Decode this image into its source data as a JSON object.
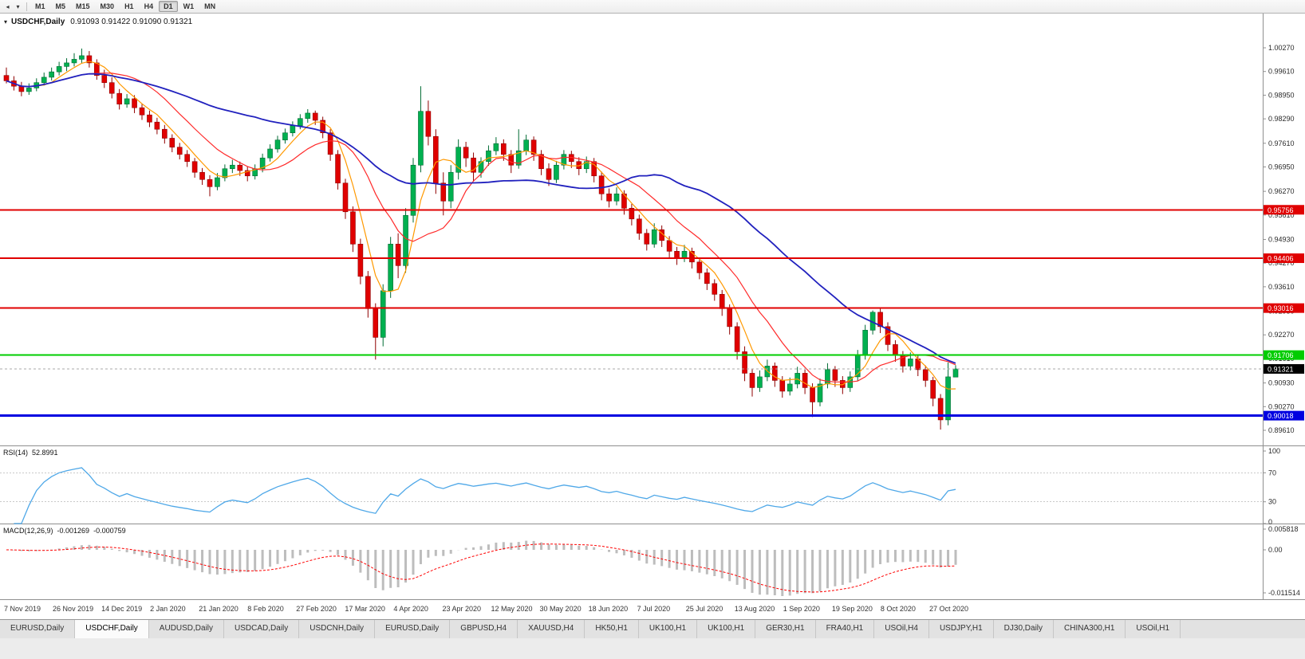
{
  "toolbar": {
    "timeframes": [
      "M1",
      "M5",
      "M15",
      "M30",
      "H1",
      "H4",
      "D1",
      "W1",
      "MN"
    ],
    "active_timeframe": "D1",
    "overflow_icon": "◂",
    "dropdown_icon": "▾"
  },
  "chart": {
    "symbol_title": "USDCHF,Daily",
    "ohlc_text": "0.91093 0.91422 0.91090 0.91321",
    "expander_icon": "▾"
  },
  "tabs": {
    "active_index": 1,
    "items": [
      "EURUSD,Daily",
      "USDCHF,Daily",
      "AUDUSD,Daily",
      "USDCAD,Daily",
      "USDCNH,Daily",
      "EURUSD,Daily",
      "GBPUSD,H4",
      "XAUUSD,H4",
      "HK50,H1",
      "UK100,H1",
      "UK100,H1",
      "GER30,H1",
      "FRA40,H1",
      "USOil,H4",
      "USDJPY,H1",
      "DJ30,Daily",
      "CHINA300,H1",
      "USOil,H1"
    ]
  },
  "chart_data": {
    "type": "candlestick",
    "symbol": "USDCHF",
    "period": "Daily",
    "last_bar": {
      "open": 0.91093,
      "high": 0.91422,
      "low": 0.9109,
      "close": 0.91321
    },
    "y_axis_labels": [
      "1.00270",
      "0.99610",
      "0.98950",
      "0.98290",
      "0.97610",
      "0.96950",
      "0.96270",
      "0.95610",
      "0.94930",
      "0.94270",
      "0.93610",
      "0.92930",
      "0.92270",
      "0.91610",
      "0.90930",
      "0.90270",
      "0.89610"
    ],
    "x_labels": [
      "7 Nov 2019",
      "26 Nov 2019",
      "14 Dec 2019",
      "2 Jan 2020",
      "21 Jan 2020",
      "8 Feb 2020",
      "27 Feb 2020",
      "17 Mar 2020",
      "4 Apr 2020",
      "23 Apr 2020",
      "12 May 2020",
      "30 May 2020",
      "18 Jun 2020",
      "7 Jul 2020",
      "25 Jul 2020",
      "13 Aug 2020",
      "1 Sep 2020",
      "19 Sep 2020",
      "8 Oct 2020",
      "27 Oct 2020"
    ],
    "hlines": [
      {
        "price": 0.95756,
        "label": "0.95756",
        "color": "#E00000",
        "width": 2
      },
      {
        "price": 0.94406,
        "label": "0.94406",
        "color": "#E00000",
        "width": 2
      },
      {
        "price": 0.93016,
        "label": "0.93016",
        "color": "#E00000",
        "width": 2
      },
      {
        "price": 0.91706,
        "label": "0.91706",
        "color": "#00CC00",
        "width": 2
      },
      {
        "price": 0.90018,
        "label": "0.90018",
        "color": "#0000E0",
        "width": 3
      }
    ],
    "current_price": {
      "value": 0.91321,
      "label": "0.91321",
      "line_color": "#A8A8A8",
      "label_bg": "#000000"
    },
    "colors": {
      "up": "#00B050",
      "up_dark": "#006B33",
      "down": "#E00000",
      "down_dark": "#8F0000",
      "ma_fast": "#FF9900",
      "ma_mid": "#FF2A2A",
      "ma_slow": "#2121BE"
    },
    "rsi": {
      "label": "RSI(14)",
      "value": "52.8991",
      "levels": [
        100,
        70,
        30,
        0
      ],
      "color": "#4FA8E8"
    },
    "macd": {
      "label": "MACD(12,26,9)",
      "value_main": "-0.001269",
      "value_signal": "-0.000759",
      "axis_labels": [
        "0.005818",
        "0.00",
        "-0.011514"
      ],
      "hist_color": "#BDBDBD",
      "signal_color": "#FF0000"
    },
    "candles": [
      [
        0.995,
        0.9972,
        0.9928,
        0.9935
      ],
      [
        0.9935,
        0.9948,
        0.9908,
        0.992
      ],
      [
        0.992,
        0.9932,
        0.9892,
        0.9905
      ],
      [
        0.9905,
        0.9928,
        0.9896,
        0.9915
      ],
      [
        0.9915,
        0.9942,
        0.9906,
        0.993
      ],
      [
        0.993,
        0.9958,
        0.9922,
        0.9945
      ],
      [
        0.9945,
        0.9972,
        0.9936,
        0.996
      ],
      [
        0.996,
        0.9988,
        0.995,
        0.9975
      ],
      [
        0.9975,
        0.9998,
        0.9962,
        0.9985
      ],
      [
        0.9985,
        1.0012,
        0.9975,
        0.9995
      ],
      [
        0.9995,
        1.0025,
        0.9985,
        1.0005
      ],
      [
        1.0005,
        1.0018,
        0.9972,
        0.9985
      ],
      [
        0.9985,
        0.9995,
        0.9938,
        0.995
      ],
      [
        0.995,
        0.9966,
        0.9915,
        0.993
      ],
      [
        0.993,
        0.9945,
        0.9886,
        0.99
      ],
      [
        0.99,
        0.9912,
        0.9855,
        0.987
      ],
      [
        0.987,
        0.9898,
        0.986,
        0.9885
      ],
      [
        0.9885,
        0.9895,
        0.9845,
        0.986
      ],
      [
        0.986,
        0.9872,
        0.9826,
        0.984
      ],
      [
        0.984,
        0.9852,
        0.9806,
        0.982
      ],
      [
        0.982,
        0.9832,
        0.9786,
        0.98
      ],
      [
        0.98,
        0.9812,
        0.976,
        0.9775
      ],
      [
        0.9775,
        0.9786,
        0.9736,
        0.975
      ],
      [
        0.975,
        0.9762,
        0.9716,
        0.973
      ],
      [
        0.973,
        0.9742,
        0.9695,
        0.971
      ],
      [
        0.971,
        0.972,
        0.9665,
        0.968
      ],
      [
        0.968,
        0.9692,
        0.9645,
        0.966
      ],
      [
        0.966,
        0.9672,
        0.9613,
        0.964
      ],
      [
        0.964,
        0.9678,
        0.963,
        0.9665
      ],
      [
        0.9665,
        0.9702,
        0.9655,
        0.969
      ],
      [
        0.969,
        0.9715,
        0.9678,
        0.97
      ],
      [
        0.97,
        0.971,
        0.967,
        0.9685
      ],
      [
        0.9685,
        0.9696,
        0.9655,
        0.967
      ],
      [
        0.967,
        0.9702,
        0.966,
        0.969
      ],
      [
        0.969,
        0.9732,
        0.968,
        0.972
      ],
      [
        0.972,
        0.9758,
        0.971,
        0.9745
      ],
      [
        0.9745,
        0.9782,
        0.9735,
        0.977
      ],
      [
        0.977,
        0.9802,
        0.976,
        0.979
      ],
      [
        0.979,
        0.9822,
        0.978,
        0.981
      ],
      [
        0.981,
        0.9842,
        0.98,
        0.983
      ],
      [
        0.983,
        0.9856,
        0.9818,
        0.9845
      ],
      [
        0.9845,
        0.9852,
        0.9812,
        0.9825
      ],
      [
        0.9825,
        0.9835,
        0.9775,
        0.979
      ],
      [
        0.979,
        0.98,
        0.9712,
        0.973
      ],
      [
        0.973,
        0.9742,
        0.9632,
        0.965
      ],
      [
        0.965,
        0.9662,
        0.955,
        0.957
      ],
      [
        0.957,
        0.9585,
        0.9458,
        0.948
      ],
      [
        0.948,
        0.9495,
        0.9368,
        0.939
      ],
      [
        0.939,
        0.9405,
        0.9275,
        0.93
      ],
      [
        0.93,
        0.9315,
        0.9158,
        0.922
      ],
      [
        0.922,
        0.9368,
        0.9195,
        0.935
      ],
      [
        0.935,
        0.95,
        0.933,
        0.948
      ],
      [
        0.948,
        0.951,
        0.9385,
        0.942
      ],
      [
        0.942,
        0.958,
        0.94,
        0.956
      ],
      [
        0.956,
        0.972,
        0.954,
        0.97
      ],
      [
        0.97,
        0.992,
        0.968,
        0.985
      ],
      [
        0.985,
        0.988,
        0.9755,
        0.978
      ],
      [
        0.978,
        0.98,
        0.962,
        0.965
      ],
      [
        0.965,
        0.968,
        0.956,
        0.96
      ],
      [
        0.96,
        0.97,
        0.958,
        0.968
      ],
      [
        0.968,
        0.9772,
        0.966,
        0.975
      ],
      [
        0.975,
        0.9765,
        0.9695,
        0.972
      ],
      [
        0.972,
        0.9735,
        0.9655,
        0.968
      ],
      [
        0.968,
        0.9722,
        0.9665,
        0.971
      ],
      [
        0.971,
        0.9755,
        0.9698,
        0.974
      ],
      [
        0.974,
        0.9778,
        0.9728,
        0.976
      ],
      [
        0.976,
        0.9772,
        0.9712,
        0.973
      ],
      [
        0.973,
        0.9742,
        0.9678,
        0.97
      ],
      [
        0.97,
        0.98,
        0.969,
        0.974
      ],
      [
        0.974,
        0.9785,
        0.9728,
        0.977
      ],
      [
        0.977,
        0.978,
        0.9712,
        0.973
      ],
      [
        0.973,
        0.9742,
        0.9672,
        0.969
      ],
      [
        0.969,
        0.9705,
        0.9642,
        0.966
      ],
      [
        0.966,
        0.9712,
        0.965,
        0.97
      ],
      [
        0.97,
        0.9742,
        0.9688,
        0.973
      ],
      [
        0.973,
        0.974,
        0.9692,
        0.971
      ],
      [
        0.971,
        0.9722,
        0.9672,
        0.969
      ],
      [
        0.969,
        0.9724,
        0.9678,
        0.971
      ],
      [
        0.971,
        0.972,
        0.9652,
        0.967
      ],
      [
        0.967,
        0.9682,
        0.9602,
        0.962
      ],
      [
        0.962,
        0.9635,
        0.9582,
        0.96
      ],
      [
        0.96,
        0.9638,
        0.9588,
        0.962
      ],
      [
        0.962,
        0.963,
        0.9562,
        0.958
      ],
      [
        0.958,
        0.9592,
        0.9532,
        0.955
      ],
      [
        0.955,
        0.9562,
        0.9492,
        0.951
      ],
      [
        0.951,
        0.9522,
        0.9462,
        0.948
      ],
      [
        0.948,
        0.9538,
        0.947,
        0.952
      ],
      [
        0.952,
        0.9532,
        0.9472,
        0.949
      ],
      [
        0.949,
        0.9502,
        0.9442,
        0.946
      ],
      [
        0.946,
        0.9472,
        0.9422,
        0.944
      ],
      [
        0.944,
        0.9478,
        0.943,
        0.946
      ],
      [
        0.946,
        0.947,
        0.9412,
        0.943
      ],
      [
        0.943,
        0.9442,
        0.9382,
        0.94
      ],
      [
        0.94,
        0.9412,
        0.9352,
        0.937
      ],
      [
        0.937,
        0.9382,
        0.9322,
        0.934
      ],
      [
        0.934,
        0.9352,
        0.928,
        0.93
      ],
      [
        0.93,
        0.9312,
        0.9228,
        0.925
      ],
      [
        0.925,
        0.9262,
        0.9158,
        0.918
      ],
      [
        0.918,
        0.9195,
        0.9098,
        0.912
      ],
      [
        0.912,
        0.9132,
        0.9055,
        0.908
      ],
      [
        0.908,
        0.9128,
        0.9068,
        0.911
      ],
      [
        0.911,
        0.9158,
        0.9098,
        0.914
      ],
      [
        0.914,
        0.915,
        0.9082,
        0.91
      ],
      [
        0.91,
        0.9112,
        0.9052,
        0.907
      ],
      [
        0.907,
        0.9108,
        0.9058,
        0.909
      ],
      [
        0.909,
        0.9138,
        0.9078,
        0.912
      ],
      [
        0.912,
        0.913,
        0.9062,
        0.908
      ],
      [
        0.908,
        0.9092,
        0.8998,
        0.904
      ],
      [
        0.904,
        0.9105,
        0.9028,
        0.909
      ],
      [
        0.909,
        0.9148,
        0.9078,
        0.913
      ],
      [
        0.913,
        0.914,
        0.9082,
        0.91
      ],
      [
        0.91,
        0.9112,
        0.9062,
        0.908
      ],
      [
        0.908,
        0.9125,
        0.9068,
        0.911
      ],
      [
        0.911,
        0.9185,
        0.9098,
        0.917
      ],
      [
        0.917,
        0.9255,
        0.9158,
        0.924
      ],
      [
        0.924,
        0.9295,
        0.9228,
        0.929
      ],
      [
        0.929,
        0.93,
        0.9232,
        0.925
      ],
      [
        0.925,
        0.9262,
        0.9182,
        0.92
      ],
      [
        0.92,
        0.9212,
        0.9152,
        0.917
      ],
      [
        0.917,
        0.9182,
        0.9122,
        0.914
      ],
      [
        0.914,
        0.9178,
        0.9128,
        0.916
      ],
      [
        0.916,
        0.917,
        0.9112,
        0.913
      ],
      [
        0.913,
        0.9142,
        0.9082,
        0.91
      ],
      [
        0.91,
        0.911,
        0.9028,
        0.905
      ],
      [
        0.905,
        0.9062,
        0.8963,
        0.899
      ],
      [
        0.899,
        0.915,
        0.8975,
        0.911
      ],
      [
        0.91093,
        0.91422,
        0.9109,
        0.91321
      ]
    ]
  }
}
